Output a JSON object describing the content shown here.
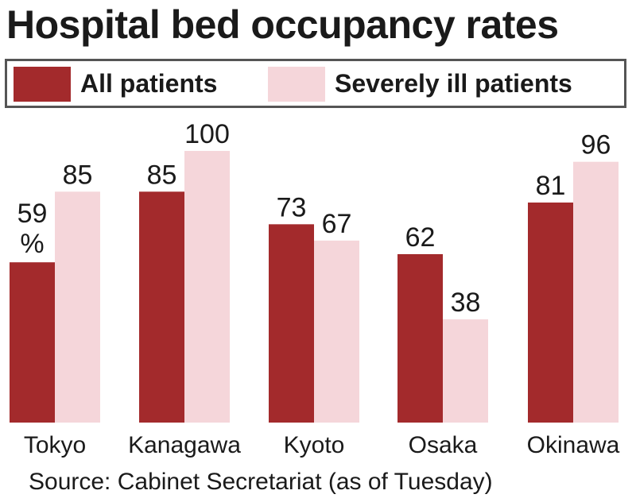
{
  "title": "Hospital bed occupancy rates",
  "source": "Source: Cabinet Secretariat (as of Tuesday)",
  "colors": {
    "all": "#a32a2c",
    "severe": "#f5d6da"
  },
  "chart_data": {
    "type": "bar",
    "title": "Hospital bed occupancy rates",
    "xlabel": "",
    "ylabel": "",
    "ylim": [
      0,
      100
    ],
    "unit": "%",
    "grid": false,
    "legend_position": "top",
    "categories": [
      "Tokyo",
      "Kanagawa",
      "Kyoto",
      "Osaka",
      "Okinawa"
    ],
    "series": [
      {
        "name": "All patients",
        "values": [
          59,
          85,
          73,
          62,
          81
        ]
      },
      {
        "name": "Severely ill patients",
        "values": [
          85,
          100,
          67,
          38,
          96
        ]
      }
    ]
  }
}
